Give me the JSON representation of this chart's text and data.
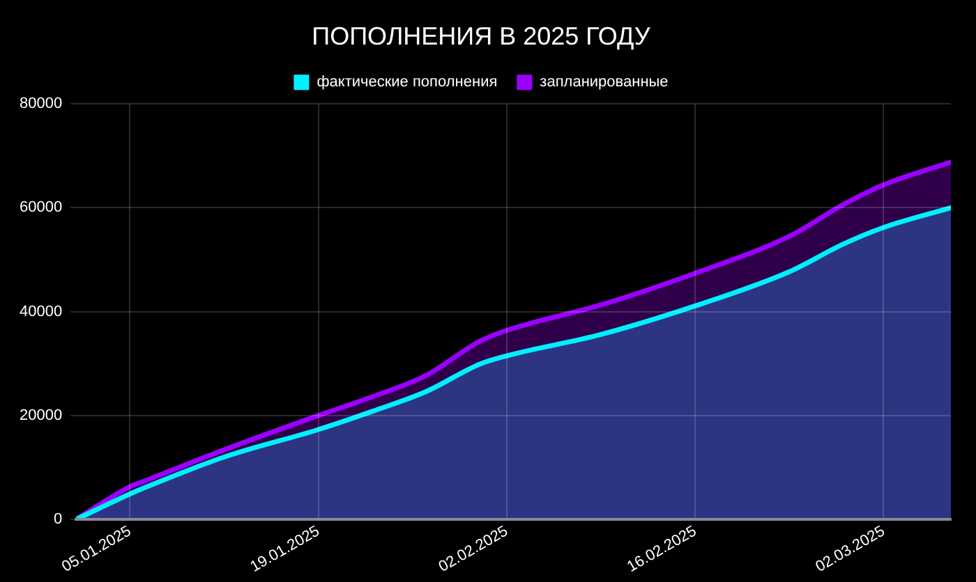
{
  "chart_data": {
    "type": "area",
    "title": "ПОПОЛНЕНИЯ В 2025 ГОДУ",
    "x": [
      "2025-01-01",
      "2025-01-05",
      "2025-01-06",
      "2025-01-12",
      "2025-01-19",
      "2025-01-23",
      "2025-01-27",
      "2025-01-31",
      "2025-02-02",
      "2025-02-09",
      "2025-02-16",
      "2025-02-23",
      "2025-02-27",
      "2025-03-02",
      "2025-03-07"
    ],
    "series": [
      {
        "name": "фактические пополнения",
        "color": "#00f0ff",
        "values": [
          0,
          4900,
          6000,
          12000,
          17300,
          20800,
          24600,
          29900,
          31500,
          35600,
          41100,
          47700,
          53000,
          56200,
          60000
        ]
      },
      {
        "name": "запланированные",
        "color": "#9b00ff",
        "values": [
          0,
          6300,
          7300,
          13400,
          20000,
          23600,
          27700,
          34300,
          36400,
          41300,
          47400,
          54500,
          60600,
          64400,
          68800
        ]
      }
    ],
    "xlim": [
      "2025-01-01",
      "2025-03-07"
    ],
    "xticks": [
      {
        "value": "2025-01-05",
        "label": "05.01.2025"
      },
      {
        "value": "2025-01-19",
        "label": "19.01.2025"
      },
      {
        "value": "2025-02-02",
        "label": "02.02.2025"
      },
      {
        "value": "2025-02-16",
        "label": "16.02.2025"
      },
      {
        "value": "2025-03-02",
        "label": "02.03.2025"
      }
    ],
    "ylim": [
      0,
      80000
    ],
    "yticks": [
      0,
      20000,
      40000,
      60000,
      80000
    ],
    "grid": true,
    "legend": "top"
  }
}
